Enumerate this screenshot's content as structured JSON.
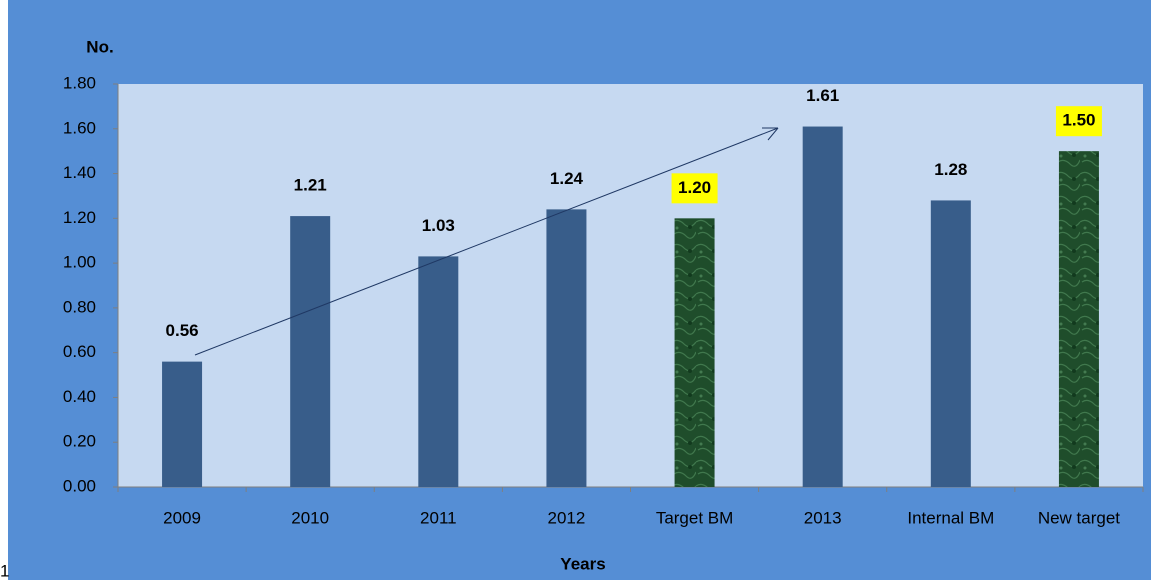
{
  "chart_data": {
    "type": "bar",
    "y_label": "No.",
    "x_label": "Years",
    "footnote": "1",
    "categories": [
      "2009",
      "2010",
      "2011",
      "2012",
      "Target BM",
      "2013",
      "Internal BM",
      "New target"
    ],
    "values": [
      0.56,
      1.21,
      1.03,
      1.24,
      1.2,
      1.61,
      1.28,
      1.5
    ],
    "value_labels": [
      "0.56",
      "1.21",
      "1.03",
      "1.24",
      "1.20",
      "1.61",
      "1.28",
      "1.50"
    ],
    "colors": [
      "#385D8A",
      "#385D8A",
      "#385D8A",
      "#385D8A",
      "#1F4D2B",
      "#385D8A",
      "#385D8A",
      "#1F4D2B"
    ],
    "highlighted": [
      false,
      false,
      false,
      false,
      true,
      false,
      false,
      true
    ],
    "highlight_color": "#FFFF00",
    "ylim": [
      0,
      1.8
    ],
    "yticks": [
      {
        "value": 0,
        "label": "0.00"
      },
      {
        "value": 0.2,
        "label": "0.20"
      },
      {
        "value": 0.4,
        "label": "0.40"
      },
      {
        "value": 0.6,
        "label": "0.60"
      },
      {
        "value": 0.8,
        "label": "0.80"
      },
      {
        "value": 1.0,
        "label": "1.00"
      },
      {
        "value": 1.2,
        "label": "1.20"
      },
      {
        "value": 1.4,
        "label": "1.40"
      },
      {
        "value": 1.6,
        "label": "1.60"
      },
      {
        "value": 1.8,
        "label": "1.80"
      }
    ],
    "grid": false
  }
}
